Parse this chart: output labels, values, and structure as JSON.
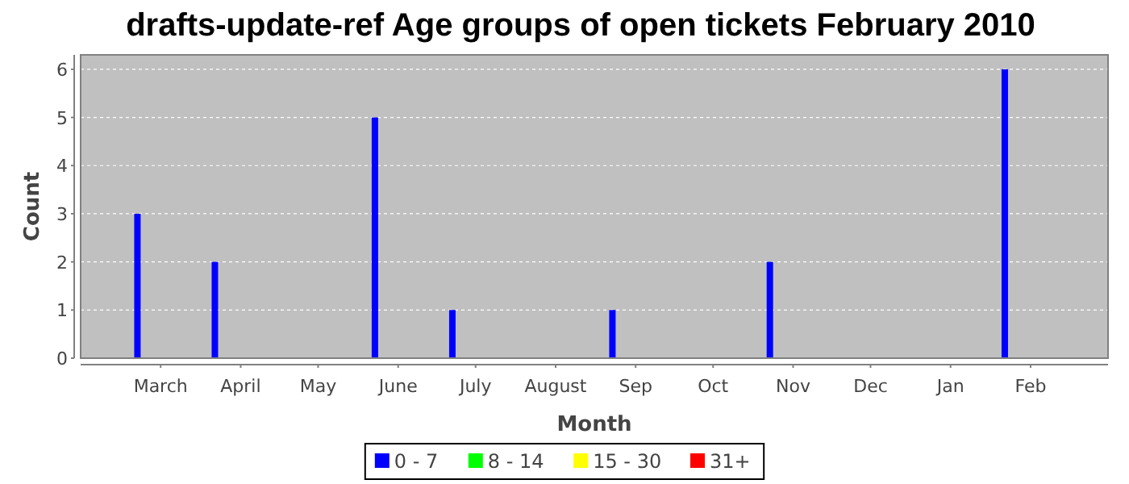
{
  "chart_data": {
    "type": "bar",
    "title": "drafts-update-ref Age groups of open tickets February 2010",
    "xlabel": "Month",
    "ylabel": "Count",
    "x": [
      "2009-02-20",
      "2009-03-22",
      "2009-05-23",
      "2009-06-22",
      "2009-08-23",
      "2009-10-23",
      "2010-01-22"
    ],
    "series": [
      {
        "name": "0 - 7",
        "color": "#0000ff",
        "values": [
          3,
          2,
          5,
          1,
          1,
          2,
          6
        ]
      },
      {
        "name": "8 - 14",
        "color": "#00ff00",
        "values": [
          0,
          0,
          0,
          0,
          0,
          0,
          0
        ]
      },
      {
        "name": "15 - 30",
        "color": "#ffff00",
        "values": [
          0,
          0,
          0,
          0,
          0,
          0,
          0
        ]
      },
      {
        "name": "31+",
        "color": "#ff0000",
        "values": [
          0,
          0,
          0,
          0,
          0,
          0,
          0
        ]
      }
    ],
    "xlim": [
      "2009-01-29",
      "2010-03-03"
    ],
    "xticks": [
      {
        "value": "2009-03-01",
        "label": "March"
      },
      {
        "value": "2009-04-01",
        "label": "April"
      },
      {
        "value": "2009-05-01",
        "label": "May"
      },
      {
        "value": "2009-06-01",
        "label": "June"
      },
      {
        "value": "2009-07-01",
        "label": "July"
      },
      {
        "value": "2009-08-01",
        "label": "August"
      },
      {
        "value": "2009-09-01",
        "label": "Sep"
      },
      {
        "value": "2009-10-01",
        "label": "Oct"
      },
      {
        "value": "2009-11-01",
        "label": "Nov"
      },
      {
        "value": "2009-12-01",
        "label": "Dec"
      },
      {
        "value": "2010-01-01",
        "label": "Jan"
      },
      {
        "value": "2010-02-01",
        "label": "Feb"
      }
    ],
    "ylim": [
      0,
      6.3
    ],
    "yticks": [
      0,
      1,
      2,
      3,
      4,
      5,
      6
    ],
    "grid": "y",
    "legend": "bottom"
  }
}
